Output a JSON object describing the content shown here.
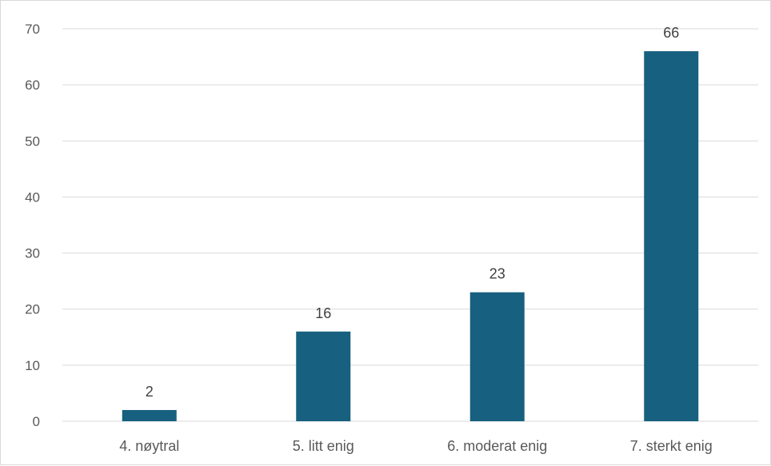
{
  "chart_data": {
    "type": "bar",
    "title": "",
    "xlabel": "",
    "ylabel": "",
    "categories": [
      "4. nøytral",
      "5. litt enig",
      "6. moderat enig",
      "7. sterkt enig"
    ],
    "values": [
      2,
      16,
      23,
      66
    ],
    "ylim": [
      0,
      70
    ],
    "yticks": [
      "0",
      "10",
      "20",
      "30",
      "40",
      "50",
      "60",
      "70"
    ],
    "data_labels": [
      "2",
      "16",
      "23",
      "66"
    ],
    "grid": true,
    "legend": "none",
    "bar_color": "#17607f",
    "gridline_color": "#d9d9d9"
  }
}
